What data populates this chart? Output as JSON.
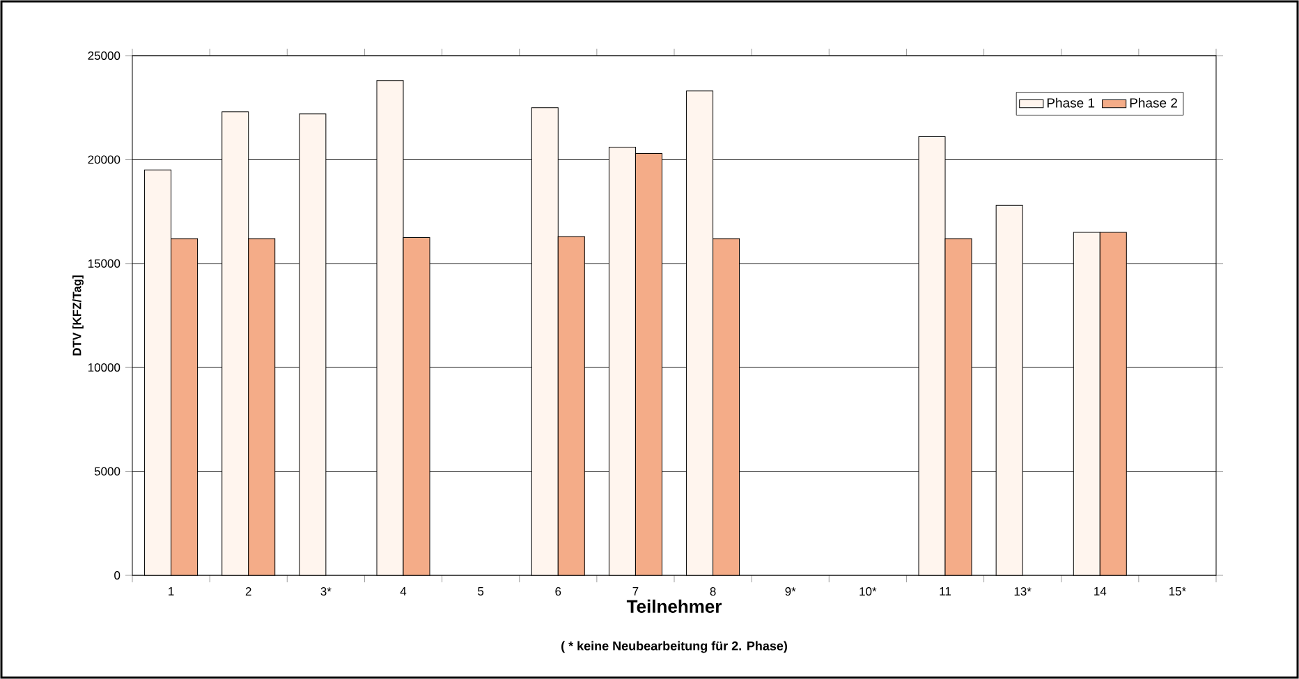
{
  "chart_data": {
    "type": "bar",
    "xlabel": "Teilnehmer",
    "ylabel": "DTV [KFZ/Tag]",
    "annotations": [
      "( * keine Neubearbeitung für 2. Phase)"
    ],
    "categories": [
      "1",
      "2",
      "3*",
      "4",
      "5",
      "6",
      "7",
      "8",
      "9*",
      "10*",
      "11",
      "13*",
      "14",
      "15*"
    ],
    "series": [
      {
        "name": "Phase 1",
        "color": "#fff5ee",
        "values": [
          19500,
          22300,
          22200,
          23800,
          null,
          22500,
          20600,
          23300,
          null,
          null,
          21100,
          17800,
          16500,
          null
        ]
      },
      {
        "name": "Phase 2",
        "color": "#f4ac88",
        "values": [
          16200,
          16200,
          null,
          16250,
          null,
          16300,
          20300,
          16200,
          null,
          null,
          16200,
          null,
          16500,
          null
        ]
      }
    ],
    "ylim": [
      0,
      25000
    ],
    "yticks": [
      0,
      5000,
      10000,
      15000,
      20000,
      25000
    ],
    "grid": "y",
    "legend": "top right"
  }
}
